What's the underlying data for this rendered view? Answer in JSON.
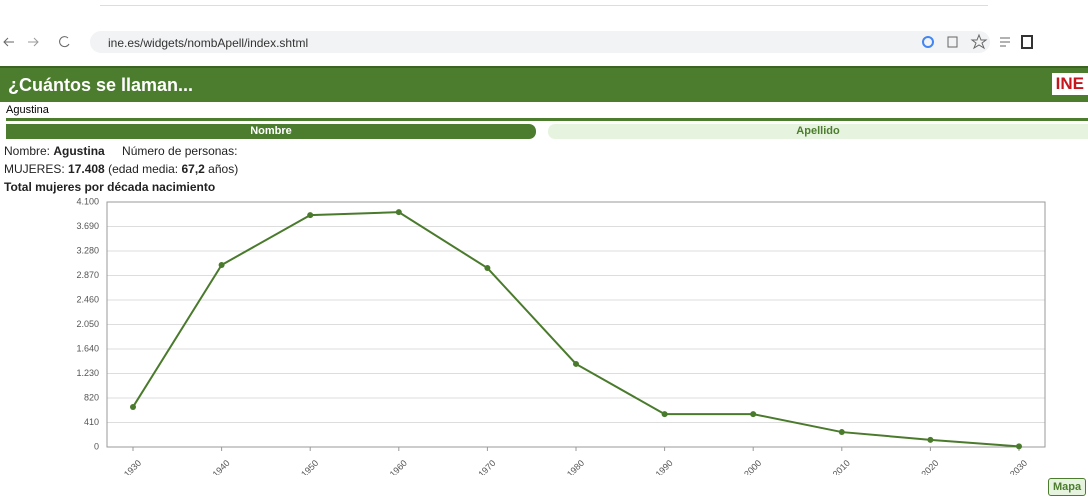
{
  "browser": {
    "url": "ine.es/widgets/nombApell/index.shtml"
  },
  "header": {
    "title": "¿Cuántos se llaman...",
    "logo": "INE"
  },
  "search": {
    "value": "Agustina"
  },
  "tabs": [
    "Nombre",
    "Apellido"
  ],
  "info": {
    "name_label": "Nombre:",
    "name": "Agustina",
    "count_label": "Número de personas:",
    "women_label": "MUJERES:",
    "women_count": "17.408",
    "age_label": "(edad media:",
    "age": "67,2",
    "age_unit": "años)"
  },
  "chart_data": {
    "type": "line",
    "title": "Total mujeres por década nacimiento",
    "categories": [
      "1930",
      "1940",
      "1950",
      "1960",
      "1970",
      "1980",
      "1990",
      "2000",
      "2010",
      "2020",
      "2030"
    ],
    "values": [
      670,
      3046,
      3880,
      3930,
      2995,
      1390,
      550,
      550,
      250,
      120,
      10
    ],
    "color": "#4a7a2c",
    "ylim": [
      0,
      4100
    ],
    "yticks": [
      0,
      410,
      820,
      {
        "value": 1230,
        "label": "1.230"
      },
      {
        "value": 1640,
        "label": "1.640"
      },
      {
        "value": 2050,
        "label": "2.050"
      },
      {
        "value": 2460,
        "label": "2.460"
      },
      {
        "value": 2870,
        "label": "2.870"
      },
      {
        "value": 3280,
        "label": "3.280"
      },
      {
        "value": 3690,
        "label": "3.690"
      },
      {
        "value": 4100,
        "label": "4.100"
      }
    ],
    "grid": true
  },
  "footer": {
    "button": "Mapa"
  }
}
